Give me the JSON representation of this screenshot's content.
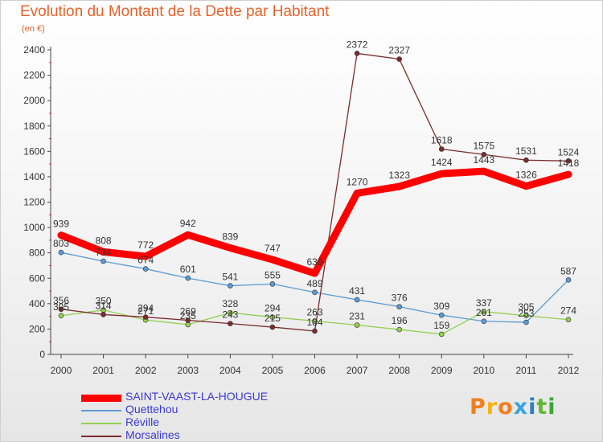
{
  "title": "Evolution du Montant de la Dette par Habitant",
  "unit": "(en €)",
  "logo": {
    "text": "Proxiti",
    "colors": [
      "#f07f1e",
      "#f7b20e",
      "#f07f1e",
      "#39a4dd",
      "#2a7fc8",
      "#5fb834",
      "#3aa635"
    ]
  },
  "chart_data": {
    "type": "line",
    "title": "Evolution du Montant de la Dette par Habitant",
    "ylabel": "(en €)",
    "xlabel": "",
    "ylim": [
      0,
      2400
    ],
    "yticks": [
      0,
      200,
      400,
      600,
      800,
      1000,
      1200,
      1400,
      1600,
      1800,
      2000,
      2200,
      2400
    ],
    "x": [
      "2000",
      "2001",
      "2002",
      "2003",
      "2004",
      "2005",
      "2006",
      "2007",
      "2008",
      "2009",
      "2010",
      "2011",
      "2012"
    ],
    "grid": false,
    "legend_position": "bottom-left",
    "series": [
      {
        "name": "SAINT-VAAST-LA-HOUGUE",
        "color": "#ff0000",
        "values": [
          939,
          808,
          772,
          942,
          839,
          747,
          639,
          1270,
          1323,
          1424,
          1443,
          1326,
          1418
        ]
      },
      {
        "name": "Quettehou",
        "color": "#5b9bd5",
        "values": [
          803,
          734,
          674,
          601,
          541,
          555,
          489,
          431,
          376,
          309,
          261,
          253,
          587
        ]
      },
      {
        "name": "Réville",
        "color": "#92d050",
        "values": [
          305,
          350,
          271,
          235,
          328,
          294,
          263,
          231,
          196,
          159,
          337,
          305,
          274
        ]
      },
      {
        "name": "Morsalines",
        "color": "#7b2c2c",
        "values": [
          356,
          314,
          294,
          269,
          243,
          215,
          184,
          2372,
          2327,
          1618,
          1575,
          1531,
          1524
        ]
      }
    ]
  }
}
